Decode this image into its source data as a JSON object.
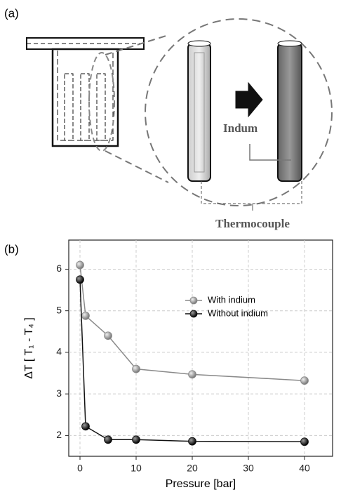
{
  "panel_a": {
    "label": "(a)",
    "labels": [
      "Indum",
      "Thermocouple"
    ]
  },
  "chart_data": {
    "type": "line",
    "panel_label": "(b)",
    "xlabel": "Pressure [bar]",
    "ylabel": "ΔT [ T₁ - T₄ ]",
    "x": [
      0,
      1,
      5,
      10,
      20,
      40
    ],
    "series": [
      {
        "name": "With indium",
        "color": "#8a8a8a",
        "values": [
          6.1,
          4.88,
          4.4,
          3.6,
          3.47,
          3.32
        ]
      },
      {
        "name": "Without indium",
        "color": "#111111",
        "values": [
          5.75,
          2.22,
          1.9,
          1.9,
          1.86,
          1.85
        ]
      }
    ],
    "xlim": [
      -2,
      45
    ],
    "ylim": [
      1.5,
      6.7
    ],
    "xticks": [
      0,
      10,
      20,
      30,
      40
    ],
    "yticks": [
      2,
      3,
      4,
      5,
      6
    ],
    "grid": true,
    "legend": "upper right"
  }
}
